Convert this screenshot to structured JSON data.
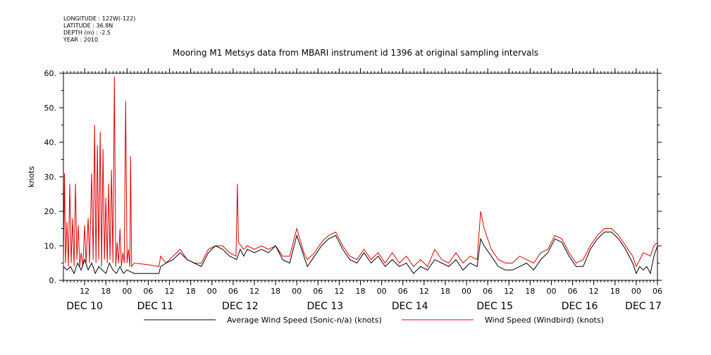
{
  "meta": {
    "longitude": "LONGITUDE : 122W(-122)",
    "latitude": "LATITUDE : 36.8N",
    "depth": "DEPTH (m) : -2.5",
    "year": "YEAR : 2010"
  },
  "chart_data": {
    "type": "line",
    "title": "Mooring M1 Metsys data from MBARI instrument id 1396 at original sampling intervals",
    "ylabel": "knots",
    "xlabel": "",
    "ylim": [
      0,
      60
    ],
    "yticks": [
      0,
      10,
      20,
      30,
      40,
      50,
      60
    ],
    "ytick_labels": [
      "0.",
      "10.",
      "20.",
      "30.",
      "40.",
      "50.",
      "60."
    ],
    "xlim_hours": [
      6,
      174
    ],
    "hour_ticks": [
      {
        "h": 12,
        "label": "12"
      },
      {
        "h": 18,
        "label": "18"
      },
      {
        "h": 24,
        "label": "00"
      },
      {
        "h": 30,
        "label": "06"
      },
      {
        "h": 36,
        "label": "12"
      },
      {
        "h": 42,
        "label": "18"
      },
      {
        "h": 48,
        "label": "00"
      },
      {
        "h": 54,
        "label": "06"
      },
      {
        "h": 60,
        "label": "12"
      },
      {
        "h": 66,
        "label": "18"
      },
      {
        "h": 72,
        "label": "00"
      },
      {
        "h": 78,
        "label": "06"
      },
      {
        "h": 84,
        "label": "12"
      },
      {
        "h": 90,
        "label": "18"
      },
      {
        "h": 96,
        "label": "00"
      },
      {
        "h": 102,
        "label": "06"
      },
      {
        "h": 108,
        "label": "12"
      },
      {
        "h": 114,
        "label": "18"
      },
      {
        "h": 120,
        "label": "00"
      },
      {
        "h": 126,
        "label": "06"
      },
      {
        "h": 132,
        "label": "12"
      },
      {
        "h": 138,
        "label": "18"
      },
      {
        "h": 144,
        "label": "00"
      },
      {
        "h": 150,
        "label": "06"
      },
      {
        "h": 156,
        "label": "12"
      },
      {
        "h": 162,
        "label": "18"
      },
      {
        "h": 168,
        "label": "00"
      },
      {
        "h": 174,
        "label": "06"
      }
    ],
    "day_labels": [
      {
        "h": 12,
        "label": "DEC 10"
      },
      {
        "h": 32,
        "label": "DEC 11"
      },
      {
        "h": 56,
        "label": "DEC 12"
      },
      {
        "h": 80,
        "label": "DEC 13"
      },
      {
        "h": 104,
        "label": "DEC 14"
      },
      {
        "h": 128,
        "label": "DEC 15"
      },
      {
        "h": 152,
        "label": "DEC 16"
      },
      {
        "h": 170,
        "label": "DEC 17"
      }
    ],
    "series": [
      {
        "name": "Average Wind Speed (Sonic-n/a) (knots)",
        "color": "#000000",
        "points": [
          [
            6,
            4
          ],
          [
            7,
            3
          ],
          [
            8,
            4
          ],
          [
            9,
            2
          ],
          [
            10,
            5
          ],
          [
            11,
            3
          ],
          [
            12,
            6
          ],
          [
            13,
            3
          ],
          [
            14,
            5
          ],
          [
            15,
            2
          ],
          [
            16,
            4
          ],
          [
            17,
            3
          ],
          [
            18,
            2
          ],
          [
            19,
            5
          ],
          [
            20,
            3
          ],
          [
            21,
            2
          ],
          [
            22,
            4
          ],
          [
            23,
            2
          ],
          [
            24,
            3
          ],
          [
            26,
            2
          ],
          [
            28,
            2
          ],
          [
            30,
            2
          ],
          [
            33,
            2
          ],
          [
            33.5,
            4
          ],
          [
            35,
            5
          ],
          [
            37,
            6
          ],
          [
            39,
            8
          ],
          [
            41,
            6
          ],
          [
            43,
            5
          ],
          [
            45,
            4
          ],
          [
            47,
            8
          ],
          [
            49,
            10
          ],
          [
            51,
            9
          ],
          [
            53,
            7
          ],
          [
            55,
            6
          ],
          [
            56,
            9
          ],
          [
            57,
            7
          ],
          [
            58,
            9
          ],
          [
            60,
            8
          ],
          [
            62,
            9
          ],
          [
            64,
            8
          ],
          [
            66,
            10
          ],
          [
            68,
            6
          ],
          [
            70,
            5
          ],
          [
            72,
            13
          ],
          [
            74,
            7
          ],
          [
            75,
            4
          ],
          [
            77,
            7
          ],
          [
            79,
            10
          ],
          [
            81,
            12
          ],
          [
            83,
            13
          ],
          [
            85,
            9
          ],
          [
            87,
            6
          ],
          [
            89,
            5
          ],
          [
            91,
            8
          ],
          [
            93,
            5
          ],
          [
            95,
            7
          ],
          [
            97,
            4
          ],
          [
            99,
            6
          ],
          [
            101,
            4
          ],
          [
            103,
            5
          ],
          [
            105,
            2
          ],
          [
            107,
            4
          ],
          [
            109,
            3
          ],
          [
            111,
            6
          ],
          [
            113,
            5
          ],
          [
            115,
            4
          ],
          [
            117,
            6
          ],
          [
            119,
            3
          ],
          [
            121,
            5
          ],
          [
            123,
            4
          ],
          [
            124,
            12
          ],
          [
            125,
            10
          ],
          [
            127,
            7
          ],
          [
            129,
            4
          ],
          [
            131,
            3
          ],
          [
            133,
            3
          ],
          [
            135,
            4
          ],
          [
            137,
            5
          ],
          [
            139,
            3
          ],
          [
            141,
            6
          ],
          [
            143,
            8
          ],
          [
            145,
            12
          ],
          [
            147,
            11
          ],
          [
            149,
            7
          ],
          [
            151,
            4
          ],
          [
            153,
            4
          ],
          [
            155,
            9
          ],
          [
            157,
            12
          ],
          [
            159,
            14
          ],
          [
            161,
            14
          ],
          [
            163,
            12
          ],
          [
            165,
            9
          ],
          [
            167,
            5
          ],
          [
            168,
            2
          ],
          [
            169,
            4
          ],
          [
            170,
            3
          ],
          [
            171,
            4
          ],
          [
            172,
            2
          ],
          [
            173,
            7
          ],
          [
            174,
            10
          ]
        ]
      },
      {
        "name": "Wind Speed (Windbird) (knots)",
        "color": "#dd0000",
        "points": [
          [
            6,
            4
          ],
          [
            6.3,
            31
          ],
          [
            6.6,
            5
          ],
          [
            7,
            17
          ],
          [
            7.4,
            4
          ],
          [
            7.8,
            28
          ],
          [
            8.2,
            5
          ],
          [
            8.6,
            18
          ],
          [
            9,
            4
          ],
          [
            9.4,
            28
          ],
          [
            9.8,
            6
          ],
          [
            10.2,
            16
          ],
          [
            10.6,
            4
          ],
          [
            11,
            8
          ],
          [
            11.5,
            4
          ],
          [
            12,
            16
          ],
          [
            12.4,
            5
          ],
          [
            13,
            18
          ],
          [
            13.4,
            5
          ],
          [
            14,
            31
          ],
          [
            14.4,
            6
          ],
          [
            14.8,
            45
          ],
          [
            15.2,
            5
          ],
          [
            15.6,
            39
          ],
          [
            16,
            6
          ],
          [
            16.4,
            43
          ],
          [
            16.8,
            4
          ],
          [
            17.2,
            38
          ],
          [
            17.6,
            6
          ],
          [
            18,
            24
          ],
          [
            18.4,
            5
          ],
          [
            18.8,
            28
          ],
          [
            19.2,
            6
          ],
          [
            19.6,
            32
          ],
          [
            20,
            5
          ],
          [
            20.4,
            59
          ],
          [
            20.8,
            4
          ],
          [
            21.2,
            11
          ],
          [
            21.6,
            5
          ],
          [
            22,
            15
          ],
          [
            22.4,
            4
          ],
          [
            22.8,
            8
          ],
          [
            23.2,
            5
          ],
          [
            23.6,
            52
          ],
          [
            24,
            5
          ],
          [
            24.4,
            9
          ],
          [
            24.8,
            4
          ],
          [
            25,
            36
          ],
          [
            25.3,
            4
          ],
          [
            26,
            5
          ],
          [
            30,
            4.5
          ],
          [
            33,
            4
          ],
          [
            33.5,
            7
          ],
          [
            35,
            5
          ],
          [
            37,
            7
          ],
          [
            39,
            9
          ],
          [
            41,
            6
          ],
          [
            43,
            5
          ],
          [
            45,
            5
          ],
          [
            47,
            9
          ],
          [
            49,
            10
          ],
          [
            51,
            10
          ],
          [
            53,
            8
          ],
          [
            54.8,
            7
          ],
          [
            55.2,
            28
          ],
          [
            55.5,
            11
          ],
          [
            57,
            9
          ],
          [
            58,
            10
          ],
          [
            60,
            9
          ],
          [
            62,
            10
          ],
          [
            64,
            9
          ],
          [
            66,
            10
          ],
          [
            68,
            7
          ],
          [
            70,
            7
          ],
          [
            72,
            15
          ],
          [
            74,
            8
          ],
          [
            75,
            6
          ],
          [
            77,
            8
          ],
          [
            79,
            11
          ],
          [
            81,
            13
          ],
          [
            83,
            14
          ],
          [
            85,
            10
          ],
          [
            87,
            7
          ],
          [
            89,
            6
          ],
          [
            91,
            9
          ],
          [
            93,
            6
          ],
          [
            95,
            8
          ],
          [
            97,
            5
          ],
          [
            99,
            8
          ],
          [
            101,
            5
          ],
          [
            103,
            7
          ],
          [
            105,
            4
          ],
          [
            107,
            6
          ],
          [
            109,
            4
          ],
          [
            111,
            9
          ],
          [
            113,
            6
          ],
          [
            115,
            5
          ],
          [
            117,
            8
          ],
          [
            119,
            5
          ],
          [
            121,
            7
          ],
          [
            123,
            6
          ],
          [
            124,
            20
          ],
          [
            125,
            15
          ],
          [
            127,
            9
          ],
          [
            129,
            6
          ],
          [
            131,
            5
          ],
          [
            133,
            5
          ],
          [
            135,
            7
          ],
          [
            137,
            6
          ],
          [
            139,
            5
          ],
          [
            141,
            8
          ],
          [
            143,
            9
          ],
          [
            145,
            13
          ],
          [
            147,
            12
          ],
          [
            149,
            8
          ],
          [
            151,
            5
          ],
          [
            153,
            6
          ],
          [
            155,
            10
          ],
          [
            157,
            13
          ],
          [
            159,
            15
          ],
          [
            161,
            15
          ],
          [
            163,
            13
          ],
          [
            165,
            10
          ],
          [
            167,
            7
          ],
          [
            168,
            4
          ],
          [
            169,
            6
          ],
          [
            170,
            8
          ],
          [
            172,
            7
          ],
          [
            173,
            10
          ],
          [
            174,
            11
          ]
        ]
      }
    ],
    "legend_position": "bottom",
    "grid": false
  }
}
